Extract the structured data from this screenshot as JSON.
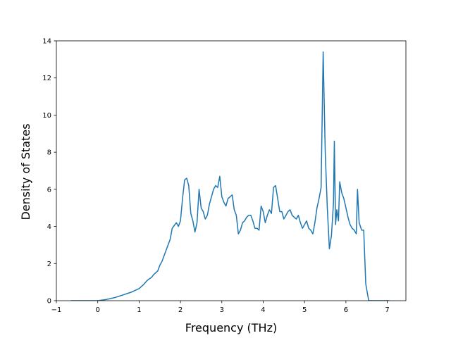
{
  "chart_data": {
    "type": "line",
    "title": "",
    "xlabel": "Frequency (THz)",
    "ylabel": "Density of States",
    "xlim": [
      -1.0,
      7.45
    ],
    "ylim": [
      0,
      14
    ],
    "xticks": [
      -1,
      0,
      1,
      2,
      3,
      4,
      5,
      6,
      7
    ],
    "xtick_labels": [
      "−1",
      "0",
      "1",
      "2",
      "3",
      "4",
      "5",
      "6",
      "7"
    ],
    "yticks": [
      0,
      2,
      4,
      6,
      8,
      10,
      12,
      14
    ],
    "ytick_labels": [
      "0",
      "2",
      "4",
      "6",
      "8",
      "10",
      "12",
      "14"
    ],
    "grid": false,
    "line_color": "#1f77b4",
    "series": [
      {
        "x": [
          -0.65,
          -0.4,
          -0.2,
          0.0,
          0.2,
          0.4,
          0.6,
          0.8,
          1.0,
          1.1,
          1.2,
          1.25,
          1.3,
          1.35,
          1.4,
          1.45,
          1.5,
          1.55,
          1.6,
          1.65,
          1.7,
          1.75,
          1.8,
          1.85,
          1.9,
          1.95,
          2.0,
          2.05,
          2.1,
          2.15,
          2.2,
          2.25,
          2.3,
          2.35,
          2.4,
          2.45,
          2.5,
          2.55,
          2.6,
          2.65,
          2.7,
          2.75,
          2.8,
          2.85,
          2.9,
          2.95,
          3.0,
          3.05,
          3.1,
          3.15,
          3.2,
          3.25,
          3.3,
          3.35,
          3.4,
          3.45,
          3.5,
          3.55,
          3.6,
          3.65,
          3.7,
          3.75,
          3.8,
          3.85,
          3.9,
          3.95,
          4.0,
          4.05,
          4.1,
          4.15,
          4.2,
          4.25,
          4.3,
          4.35,
          4.4,
          4.45,
          4.5,
          4.55,
          4.6,
          4.65,
          4.7,
          4.75,
          4.8,
          4.85,
          4.9,
          4.95,
          5.0,
          5.05,
          5.1,
          5.15,
          5.2,
          5.25,
          5.3,
          5.35,
          5.4,
          5.45,
          5.5,
          5.55,
          5.6,
          5.65,
          5.7,
          5.72,
          5.75,
          5.78,
          5.82,
          5.85,
          5.9,
          5.95,
          6.0,
          6.05,
          6.1,
          6.15,
          6.2,
          6.25,
          6.28,
          6.32,
          6.38,
          6.43,
          6.48,
          6.55,
          6.7,
          7.05
        ],
        "values": [
          0.0,
          0.0,
          0.0,
          0.0,
          0.06,
          0.16,
          0.3,
          0.45,
          0.65,
          0.85,
          1.1,
          1.18,
          1.25,
          1.4,
          1.5,
          1.6,
          1.9,
          2.1,
          2.4,
          2.7,
          3.0,
          3.3,
          3.9,
          4.05,
          4.2,
          4.0,
          4.3,
          5.5,
          6.5,
          6.6,
          6.2,
          4.7,
          4.3,
          3.7,
          4.2,
          6.0,
          5.0,
          4.8,
          4.4,
          4.6,
          5.2,
          5.6,
          6.0,
          6.2,
          6.1,
          6.7,
          5.6,
          5.3,
          5.1,
          5.5,
          5.6,
          5.7,
          4.9,
          4.6,
          3.6,
          3.8,
          4.2,
          4.3,
          4.5,
          4.6,
          4.6,
          4.3,
          3.9,
          3.9,
          3.8,
          5.1,
          4.8,
          4.2,
          4.6,
          4.9,
          4.7,
          6.1,
          6.2,
          5.5,
          4.8,
          4.8,
          4.4,
          4.6,
          4.8,
          4.9,
          4.6,
          4.5,
          4.4,
          4.6,
          4.2,
          3.9,
          4.1,
          4.3,
          3.9,
          3.8,
          3.6,
          4.2,
          5.0,
          5.5,
          6.1,
          13.4,
          8.0,
          5.0,
          2.8,
          3.5,
          5.3,
          8.6,
          4.1,
          4.9,
          4.3,
          6.4,
          5.8,
          5.5,
          5.0,
          4.5,
          4.1,
          3.9,
          3.8,
          3.6,
          6.0,
          4.2,
          3.8,
          3.8,
          0.9,
          0.0,
          0.0,
          0.0
        ]
      }
    ]
  }
}
